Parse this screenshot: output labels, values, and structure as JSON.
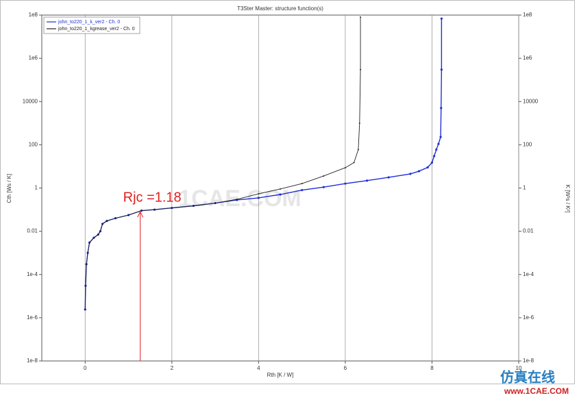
{
  "chart_data": {
    "type": "line",
    "title": "T3Ster Master: structure function(s)",
    "x_label": "Rth  [K / W]",
    "y_label": "Cth  [Ws / K]",
    "y2_label": "K  [W²s / K²]",
    "xlim": [
      -1,
      10
    ],
    "xticks": [
      0,
      2,
      4,
      6,
      8,
      10
    ],
    "ylim": [
      1e-08,
      100000000.0
    ],
    "log_y": true,
    "yticks": [
      {
        "value": 1e-08,
        "label": "1e-8"
      },
      {
        "value": 1e-06,
        "label": "1e-6"
      },
      {
        "value": 0.0001,
        "label": "1e-4"
      },
      0.01,
      1,
      100,
      10000,
      {
        "value": 1000000.0,
        "label": "1e6"
      },
      {
        "value": 100000000.0,
        "label": "1e8"
      }
    ],
    "y2lim": [
      1e-08,
      100000000.0
    ],
    "y2ticks": [
      {
        "value": 1e-08,
        "label": "1e-8"
      },
      {
        "value": 1e-06,
        "label": "1e-6"
      },
      {
        "value": 0.0001,
        "label": "1e-4"
      },
      0.01,
      1,
      100,
      10000,
      {
        "value": 1000000.0,
        "label": "1e6"
      },
      {
        "value": 100000000.0,
        "label": "1e8"
      }
    ],
    "grid": true,
    "legend": "top-left",
    "series": [
      {
        "name": "john_to220_1_k_ver2 - Ch. 0",
        "color": "#1f2fd6",
        "x": [
          0,
          0.01,
          0.03,
          0.06,
          0.1,
          0.2,
          0.3,
          0.35,
          0.4,
          0.5,
          0.7,
          1.0,
          1.3,
          1.6,
          2,
          2.5,
          3,
          3.5,
          4,
          4.5,
          5,
          5.5,
          6,
          6.5,
          7,
          7.5,
          7.7,
          7.9,
          8,
          8.05,
          8.1,
          8.15,
          8.2,
          8.21,
          8.22,
          8.22
        ],
        "values": [
          2.4e-06,
          3e-05,
          0.0003,
          0.001,
          0.003,
          0.005,
          0.007,
          0.01,
          0.022,
          0.03,
          0.04,
          0.056,
          0.09,
          0.1,
          0.12,
          0.15,
          0.2,
          0.28,
          0.35,
          0.5,
          0.8,
          1.1,
          1.6,
          2.2,
          3.1,
          4.5,
          6,
          9,
          15,
          30,
          60,
          110,
          230,
          5000,
          300000,
          69000000.0
        ]
      },
      {
        "name": "john_to220_1_kgrease_ver2 - Ch. 0",
        "color": "#222222",
        "x": [
          0,
          0.01,
          0.03,
          0.06,
          0.1,
          0.2,
          0.3,
          0.35,
          0.4,
          0.5,
          0.7,
          1.0,
          1.3,
          1.6,
          2,
          2.5,
          3,
          3.5,
          4,
          4.5,
          5,
          5.5,
          6,
          6.2,
          6.3,
          6.33,
          6.35,
          6.35
        ],
        "values": [
          2.4e-06,
          3e-05,
          0.0003,
          0.001,
          0.003,
          0.005,
          0.007,
          0.01,
          0.022,
          0.03,
          0.04,
          0.056,
          0.09,
          0.1,
          0.12,
          0.15,
          0.2,
          0.3,
          0.54,
          0.9,
          1.6,
          3.6,
          8.7,
          15,
          60,
          1000,
          300000,
          80000000.0
        ]
      }
    ],
    "annotation": {
      "text": "Rjc =1.18",
      "x": 1.27,
      "y": 0.08,
      "color": "#e02020"
    },
    "watermark": "1CAE.COM",
    "logo": {
      "title": "仿真在线",
      "url": "www.1CAE.COM"
    }
  }
}
